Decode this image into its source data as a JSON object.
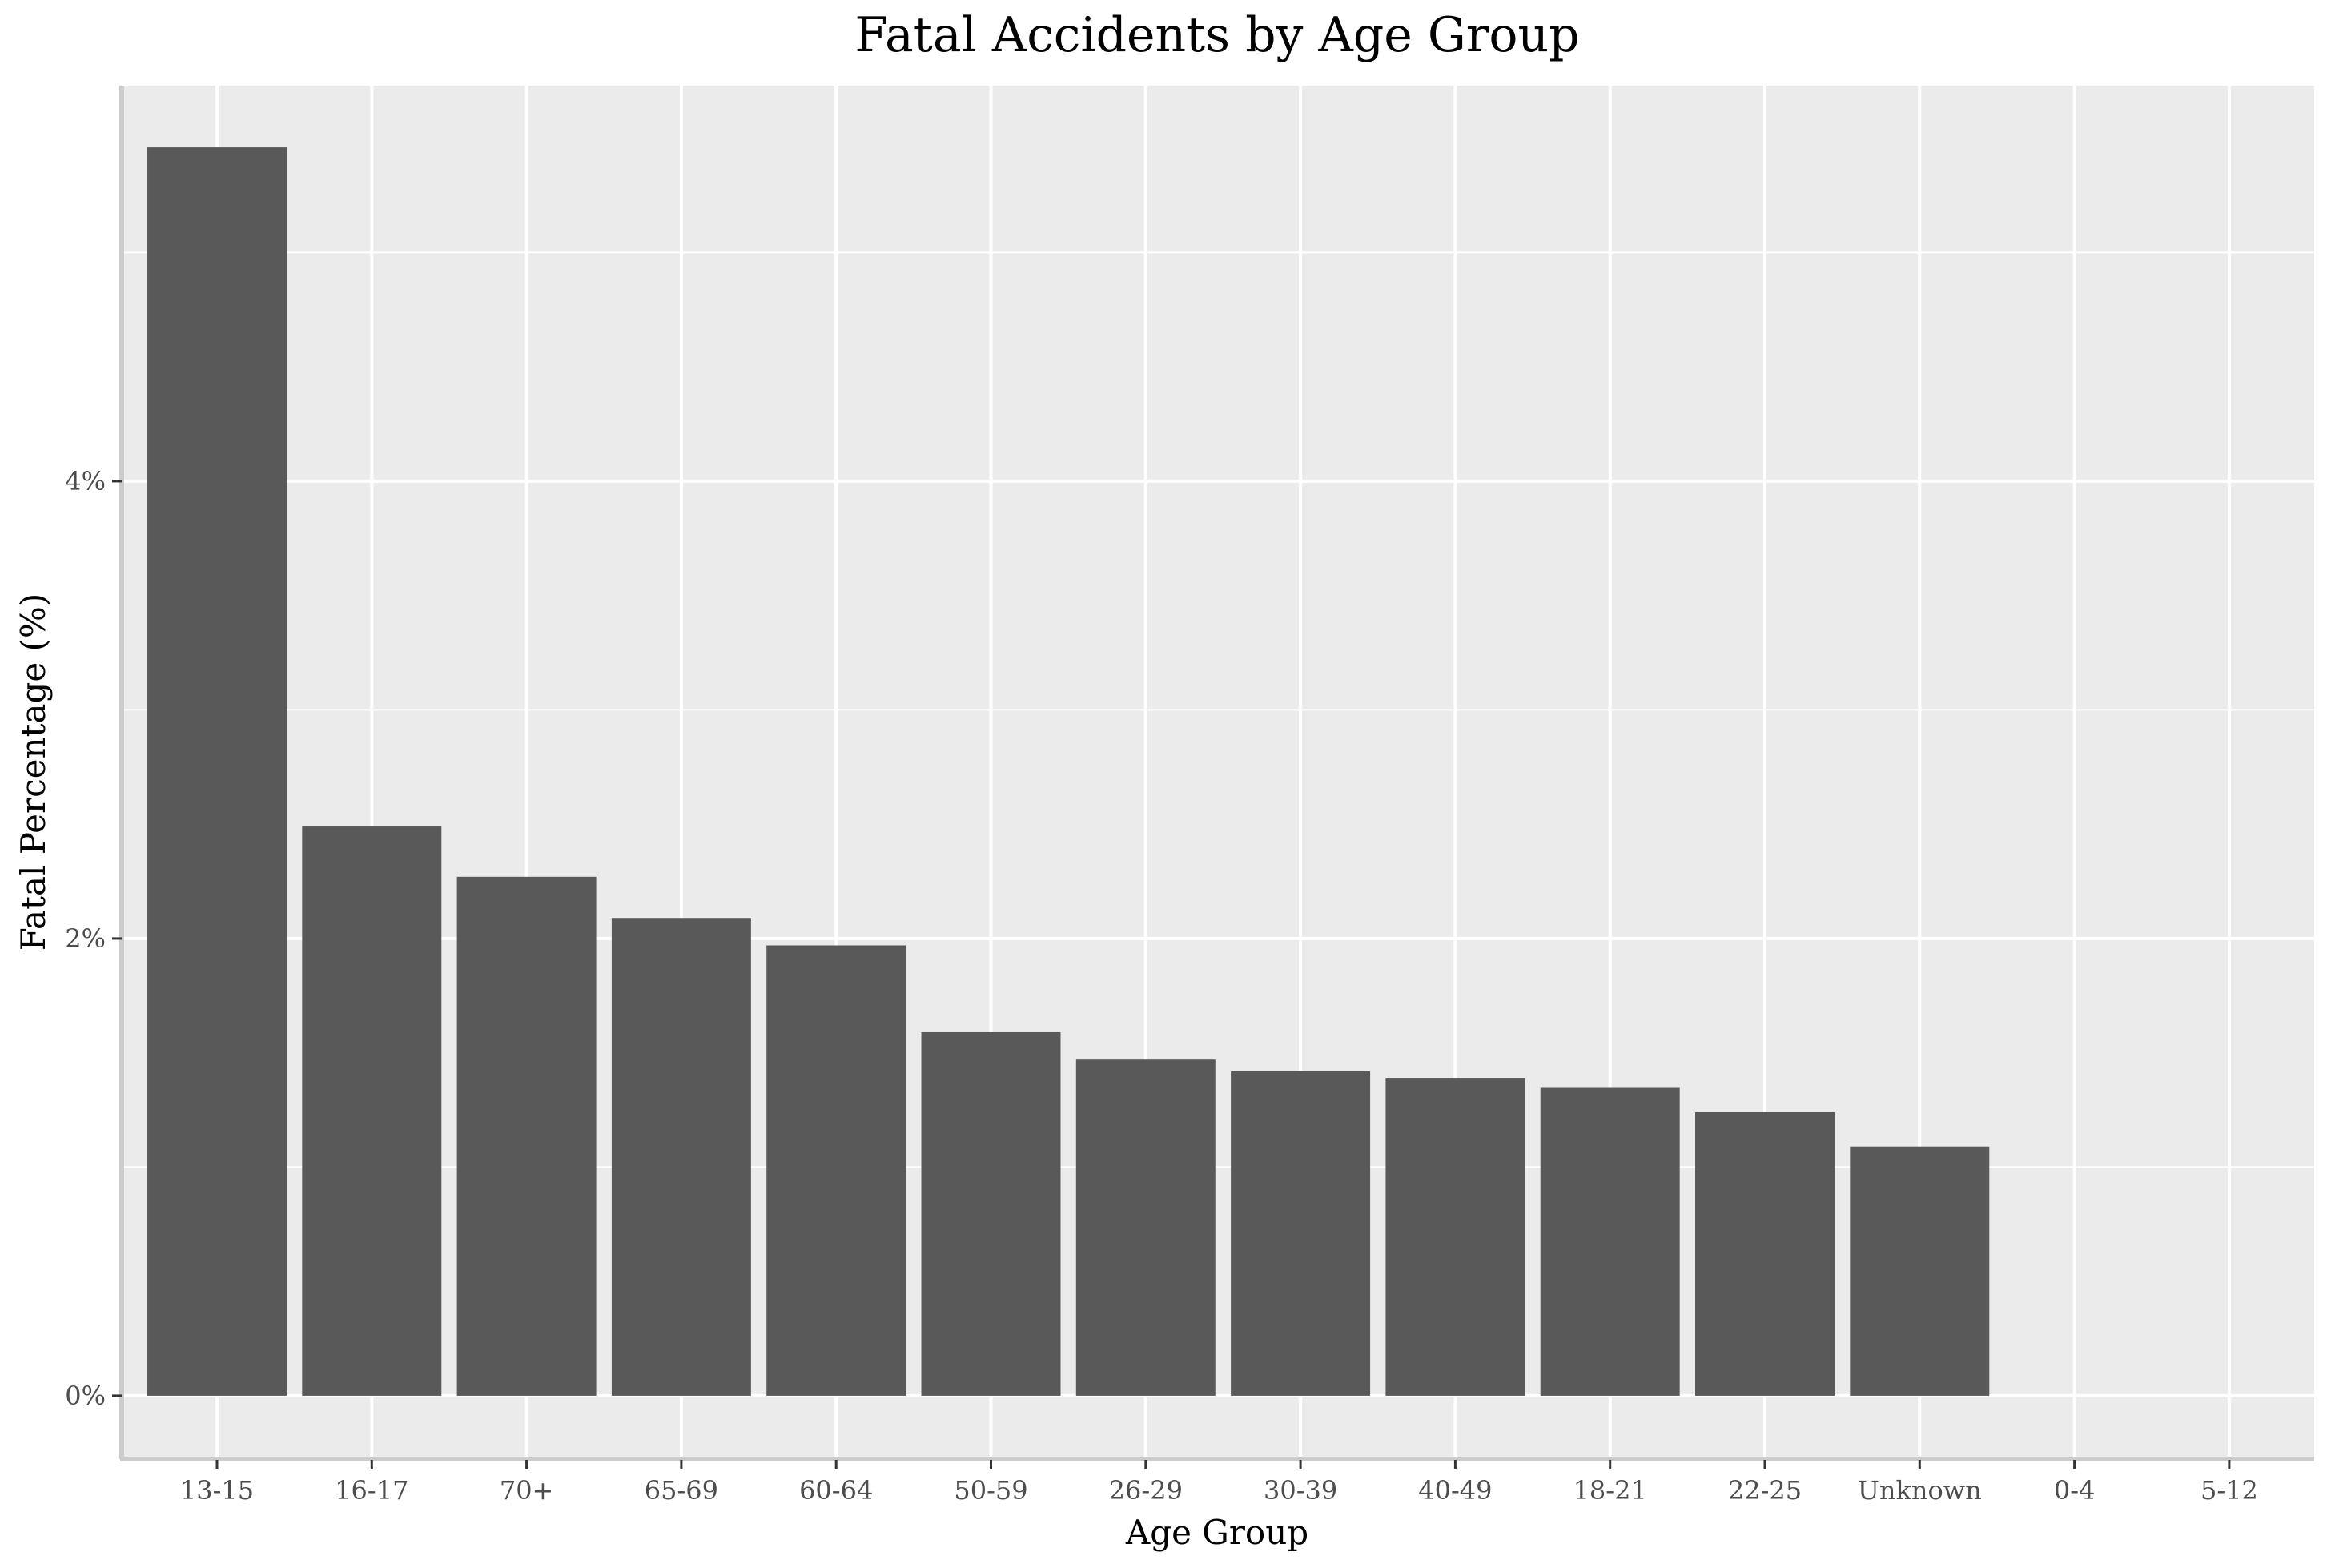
{
  "chart_data": {
    "type": "bar",
    "title": "Fatal Accidents by Age Group",
    "xlabel": "Age Group",
    "ylabel": "Fatal Percentage (%)",
    "categories": [
      "13-15",
      "16-17",
      "70+",
      "65-69",
      "60-64",
      "50-59",
      "26-29",
      "30-39",
      "40-49",
      "18-21",
      "22-25",
      "Unknown",
      "0-4",
      "5-12"
    ],
    "values": [
      5.46,
      2.49,
      2.27,
      2.09,
      1.97,
      1.59,
      1.47,
      1.42,
      1.39,
      1.35,
      1.24,
      1.09,
      0,
      0
    ],
    "ylim": [
      -0.27,
      5.73
    ],
    "yticks": [
      0,
      2,
      4
    ],
    "ytick_labels": [
      "0%",
      "2%",
      "4%"
    ],
    "grid": true,
    "colors": {
      "bar": "#595959",
      "panel": "#ebebeb",
      "grid": "#ffffff",
      "axis": "#cccccc",
      "tick": "#333333"
    }
  }
}
